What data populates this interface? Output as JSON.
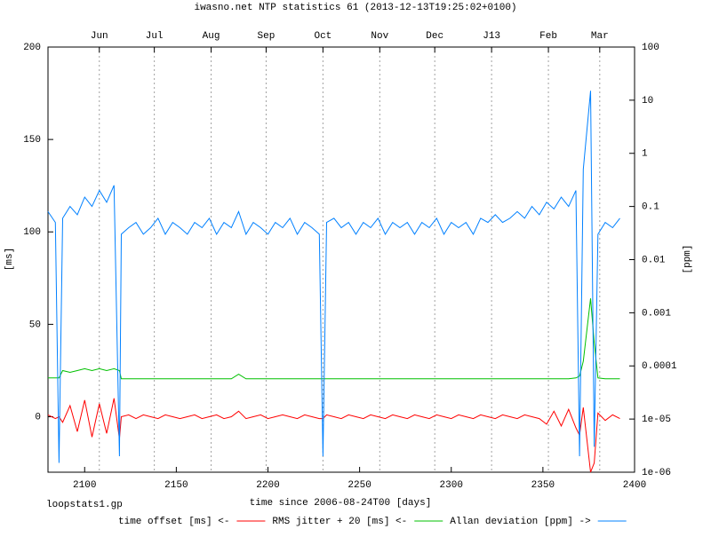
{
  "chart_data": {
    "type": "line",
    "title": "iwasno.net NTP statistics 61 (2013-12-13T19:25:02+0100)",
    "xlabel": "time since 2006-08-24T00 [days]",
    "ylabel": "[ms]",
    "y2label": "[ppm]",
    "footnote": "loopstats1.gp",
    "xlim": [
      2080,
      2400
    ],
    "xticks": [
      2100,
      2150,
      2200,
      2250,
      2300,
      2350,
      2400
    ],
    "x2ticks": [
      {
        "value": 2108,
        "label": "Jun"
      },
      {
        "value": 2138,
        "label": "Jul"
      },
      {
        "value": 2169,
        "label": "Aug"
      },
      {
        "value": 2199,
        "label": "Sep"
      },
      {
        "value": 2230,
        "label": "Oct"
      },
      {
        "value": 2261,
        "label": "Nov"
      },
      {
        "value": 2291,
        "label": "Dec"
      },
      {
        "value": 2322,
        "label": "J13"
      },
      {
        "value": 2353,
        "label": "Feb"
      },
      {
        "value": 2381,
        "label": "Mar"
      }
    ],
    "ylim": [
      -30,
      200
    ],
    "yticks": [
      0,
      50,
      100,
      150,
      200
    ],
    "y2lim": [
      1e-06,
      100
    ],
    "y2log": true,
    "y2ticks": [
      {
        "value": 1e-06,
        "label": "1e-06"
      },
      {
        "value": 1e-05,
        "label": "1e-05"
      },
      0.0001,
      0.001,
      0.01,
      0.1,
      1,
      10,
      100
    ],
    "grid": "x2",
    "x": [
      2080,
      2084,
      2086,
      2088,
      2092,
      2096,
      2100,
      2104,
      2108,
      2112,
      2116,
      2119,
      2120,
      2124,
      2128,
      2132,
      2136,
      2140,
      2144,
      2148,
      2152,
      2156,
      2160,
      2164,
      2168,
      2172,
      2176,
      2180,
      2184,
      2188,
      2192,
      2196,
      2200,
      2204,
      2208,
      2212,
      2216,
      2220,
      2224,
      2228,
      2230,
      2232,
      2236,
      2240,
      2244,
      2248,
      2252,
      2256,
      2260,
      2264,
      2268,
      2272,
      2276,
      2280,
      2284,
      2288,
      2292,
      2296,
      2300,
      2304,
      2308,
      2312,
      2316,
      2320,
      2324,
      2328,
      2332,
      2336,
      2340,
      2344,
      2348,
      2352,
      2356,
      2360,
      2364,
      2368,
      2370,
      2372,
      2376,
      2378,
      2380,
      2384,
      2388,
      2392
    ],
    "series": [
      {
        "name": "time offset [ms] <-",
        "color": "#ff0000",
        "values": [
          1,
          -1,
          0,
          -3,
          6,
          -8,
          9,
          -11,
          7,
          -9,
          10,
          -12,
          0,
          1,
          -1,
          1,
          0,
          -1,
          1,
          0,
          -1,
          0,
          1,
          -1,
          0,
          1,
          -1,
          0,
          3,
          -1,
          0,
          1,
          -1,
          0,
          1,
          0,
          -1,
          1,
          0,
          -1,
          -1,
          1,
          0,
          -1,
          1,
          0,
          -1,
          1,
          0,
          -1,
          1,
          0,
          -1,
          1,
          0,
          -1,
          1,
          0,
          -1,
          1,
          0,
          -1,
          1,
          0,
          -1,
          1,
          0,
          -1,
          1,
          0,
          -1,
          -4,
          3,
          -5,
          4,
          -6,
          -10,
          5,
          -30,
          -25,
          2,
          -2,
          1,
          -1
        ]
      },
      {
        "name": "RMS jitter + 20 [ms] <-",
        "color": "#00c000",
        "values": [
          21,
          21,
          21,
          25,
          24,
          25,
          26,
          25,
          26,
          25,
          26,
          25,
          20.5,
          20.5,
          20.5,
          20.5,
          20.5,
          20.5,
          20.5,
          20.5,
          20.5,
          20.5,
          20.5,
          20.5,
          20.5,
          20.5,
          20.5,
          20.5,
          23,
          20.5,
          20.5,
          20.5,
          20.5,
          20.5,
          20.5,
          20.5,
          20.5,
          20.5,
          20.5,
          20.5,
          20.5,
          20.5,
          20.5,
          20.5,
          20.5,
          20.5,
          20.5,
          20.5,
          20.5,
          20.5,
          20.5,
          20.5,
          20.5,
          20.5,
          20.5,
          20.5,
          20.5,
          20.5,
          20.5,
          20.5,
          20.5,
          20.5,
          20.5,
          20.5,
          20.5,
          20.5,
          20.5,
          20.5,
          20.5,
          20.5,
          20.5,
          20.5,
          20.5,
          20.5,
          20.5,
          21,
          22,
          30,
          64,
          40,
          21,
          20.5,
          20.5,
          20.5
        ]
      },
      {
        "name": "Allan deviation [ppm] ->",
        "color": "#0080ff",
        "axis": "y2",
        "values": [
          0.08,
          0.05,
          1.5e-06,
          0.06,
          0.1,
          0.07,
          0.15,
          0.1,
          0.2,
          0.12,
          0.25,
          2e-06,
          0.03,
          0.04,
          0.05,
          0.03,
          0.04,
          0.06,
          0.03,
          0.05,
          0.04,
          0.03,
          0.05,
          0.04,
          0.06,
          0.03,
          0.05,
          0.04,
          0.08,
          0.03,
          0.05,
          0.04,
          0.03,
          0.05,
          0.04,
          0.06,
          0.03,
          0.05,
          0.04,
          0.03,
          2e-06,
          0.05,
          0.06,
          0.04,
          0.05,
          0.03,
          0.05,
          0.04,
          0.06,
          0.03,
          0.05,
          0.04,
          0.05,
          0.03,
          0.05,
          0.04,
          0.06,
          0.03,
          0.05,
          0.04,
          0.05,
          0.03,
          0.06,
          0.05,
          0.07,
          0.05,
          0.06,
          0.08,
          0.06,
          0.1,
          0.07,
          0.12,
          0.09,
          0.15,
          0.1,
          0.2,
          2e-06,
          0.5,
          15,
          3e-06,
          0.03,
          0.05,
          0.04,
          0.06
        ]
      }
    ]
  }
}
